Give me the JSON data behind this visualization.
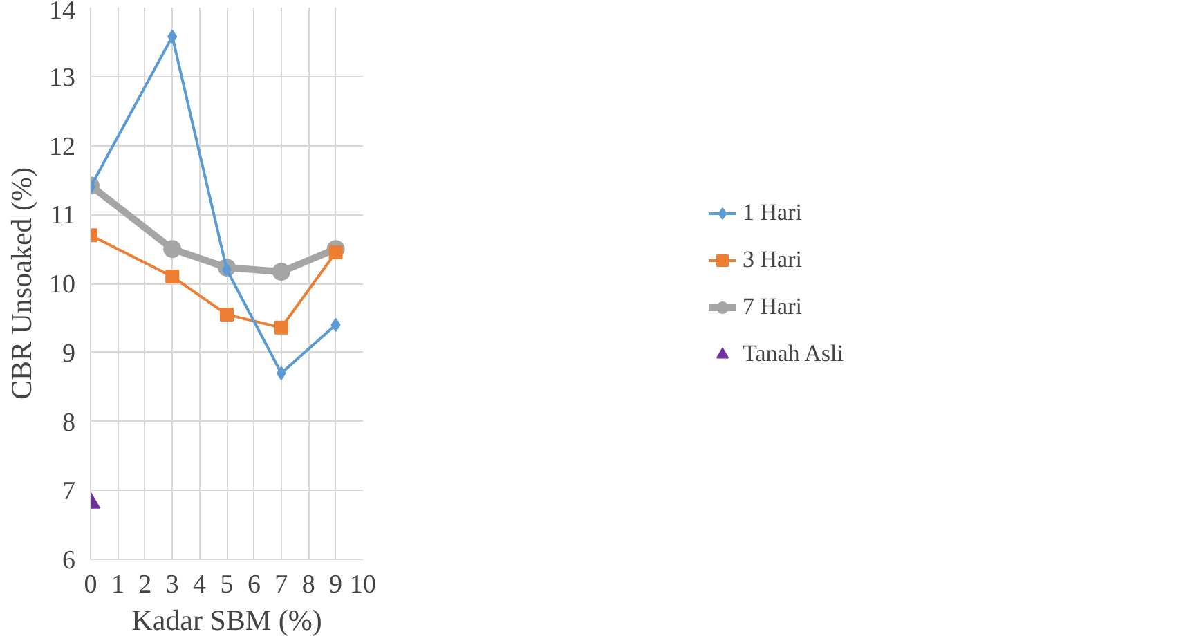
{
  "chart_data": {
    "type": "line",
    "xlabel": "Kadar SBM (%)",
    "ylabel": "CBR Unsoaked (%)",
    "xlim": [
      0,
      10
    ],
    "xticks": [
      0,
      1,
      2,
      3,
      4,
      5,
      6,
      7,
      8,
      9,
      10
    ],
    "ylim": [
      6,
      14
    ],
    "yticks": [
      6,
      7,
      8,
      9,
      10,
      11,
      12,
      13,
      14
    ],
    "grid": true,
    "legend": "right",
    "line_style": "solid",
    "series": [
      {
        "name": "1 Hari",
        "color": "#5b9bd5",
        "marker": "diamond",
        "x": [
          0,
          3,
          5,
          7,
          9
        ],
        "values": [
          11.4,
          13.58,
          10.2,
          8.7,
          9.4
        ]
      },
      {
        "name": "3 Hari",
        "color": "#ed7d31",
        "marker": "square",
        "x": [
          0,
          3,
          5,
          7,
          9
        ],
        "values": [
          10.7,
          10.1,
          9.55,
          9.36,
          10.45
        ]
      },
      {
        "name": "7 Hari",
        "color": "#a5a5a5",
        "marker": "circle",
        "x": [
          0,
          3,
          5,
          7,
          9
        ],
        "values": [
          11.42,
          10.5,
          10.23,
          10.17,
          10.5
        ]
      },
      {
        "name": "Tanah Asli",
        "type": "scatter",
        "color": "#7030a0",
        "marker": "triangle",
        "x": [
          0
        ],
        "values": [
          6.82
        ]
      }
    ]
  }
}
